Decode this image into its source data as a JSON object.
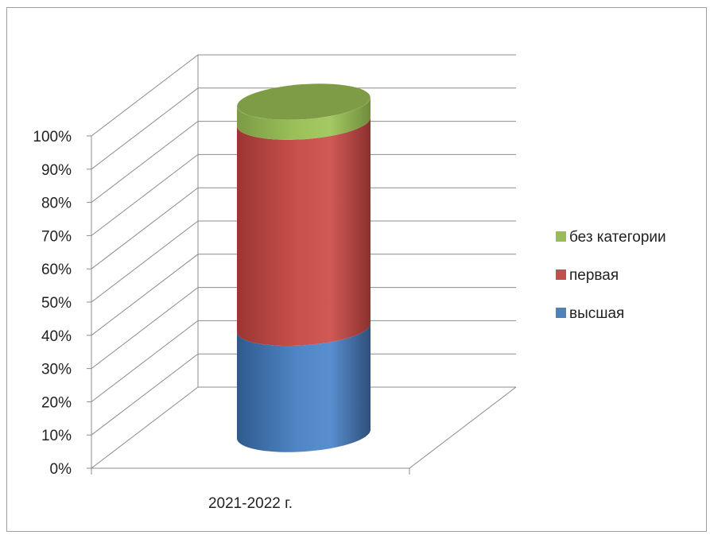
{
  "chart_data": {
    "type": "bar",
    "variant": "3d-stacked-100-cylinder",
    "categories": [
      "2021-2022 г."
    ],
    "series": [
      {
        "name": "высшая",
        "values": [
          32
        ],
        "color": "#4f81bd"
      },
      {
        "name": "первая",
        "values": [
          62
        ],
        "color": "#c0504d"
      },
      {
        "name": "без категории",
        "values": [
          6
        ],
        "color": "#9bbb59"
      }
    ],
    "ylim": [
      0,
      100
    ],
    "yticks": [
      "0%",
      "10%",
      "20%",
      "30%",
      "40%",
      "50%",
      "60%",
      "70%",
      "80%",
      "90%",
      "100%"
    ],
    "grid": true,
    "legend_position": "right",
    "legend_order": [
      "без категории",
      "первая",
      "высшая"
    ]
  }
}
